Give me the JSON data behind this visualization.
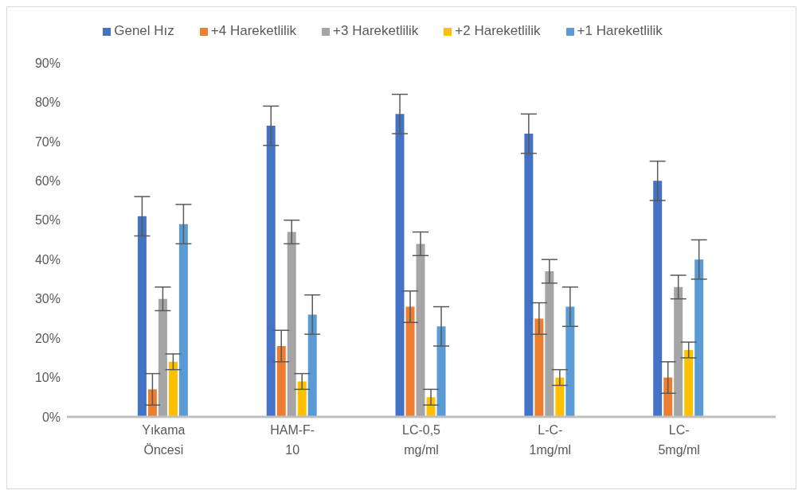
{
  "chart_data": {
    "type": "bar",
    "categories": [
      null,
      "Yıkama Öncesi",
      null,
      "HAM-F-10",
      null,
      "LC-0,5 mg/ml",
      null,
      "L-C-1mg/ml",
      null,
      "LC-5mg/ml",
      null
    ],
    "series": [
      {
        "name": "Genel Hız",
        "color": "#4472c4",
        "values": [
          null,
          51,
          null,
          74,
          null,
          77,
          null,
          72,
          null,
          60,
          null
        ],
        "errors": [
          null,
          5,
          null,
          5,
          null,
          5,
          null,
          5,
          null,
          5,
          null
        ]
      },
      {
        "name": "+4 Hareketlilik",
        "color": "#ed7d31",
        "values": [
          null,
          7,
          null,
          18,
          null,
          28,
          null,
          25,
          null,
          10,
          null
        ],
        "errors": [
          null,
          4,
          null,
          4,
          null,
          4,
          null,
          4,
          null,
          4,
          null
        ]
      },
      {
        "name": "+3 Hareketlilik",
        "color": "#a5a5a5",
        "values": [
          null,
          30,
          null,
          47,
          null,
          44,
          null,
          37,
          null,
          33,
          null
        ],
        "errors": [
          null,
          3,
          null,
          3,
          null,
          3,
          null,
          3,
          null,
          3,
          null
        ]
      },
      {
        "name": "+2 Hareketlilik",
        "color": "#ffc000",
        "values": [
          null,
          14,
          null,
          9,
          null,
          5,
          null,
          10,
          null,
          17,
          null
        ],
        "errors": [
          null,
          2,
          null,
          2,
          null,
          2,
          null,
          2,
          null,
          2,
          null
        ]
      },
      {
        "name": "+1 Hareketlilik",
        "color": "#5b9bd5",
        "values": [
          null,
          49,
          null,
          26,
          null,
          23,
          null,
          28,
          null,
          40,
          null
        ],
        "errors": [
          null,
          5,
          null,
          5,
          null,
          5,
          null,
          5,
          null,
          5,
          null
        ]
      }
    ],
    "ylim": [
      0,
      90
    ],
    "yticks": [
      {
        "value": 0,
        "label": "0%"
      },
      {
        "value": 10,
        "label": "10%"
      },
      {
        "value": 20,
        "label": "20%"
      },
      {
        "value": 30,
        "label": "30%"
      },
      {
        "value": 40,
        "label": "40%"
      },
      {
        "value": 50,
        "label": "50%"
      },
      {
        "value": 60,
        "label": "60%"
      },
      {
        "value": 70,
        "label": "70%"
      },
      {
        "value": 80,
        "label": "80%"
      },
      {
        "value": 90,
        "label": "90%"
      }
    ],
    "grid": false,
    "legend": "top"
  }
}
